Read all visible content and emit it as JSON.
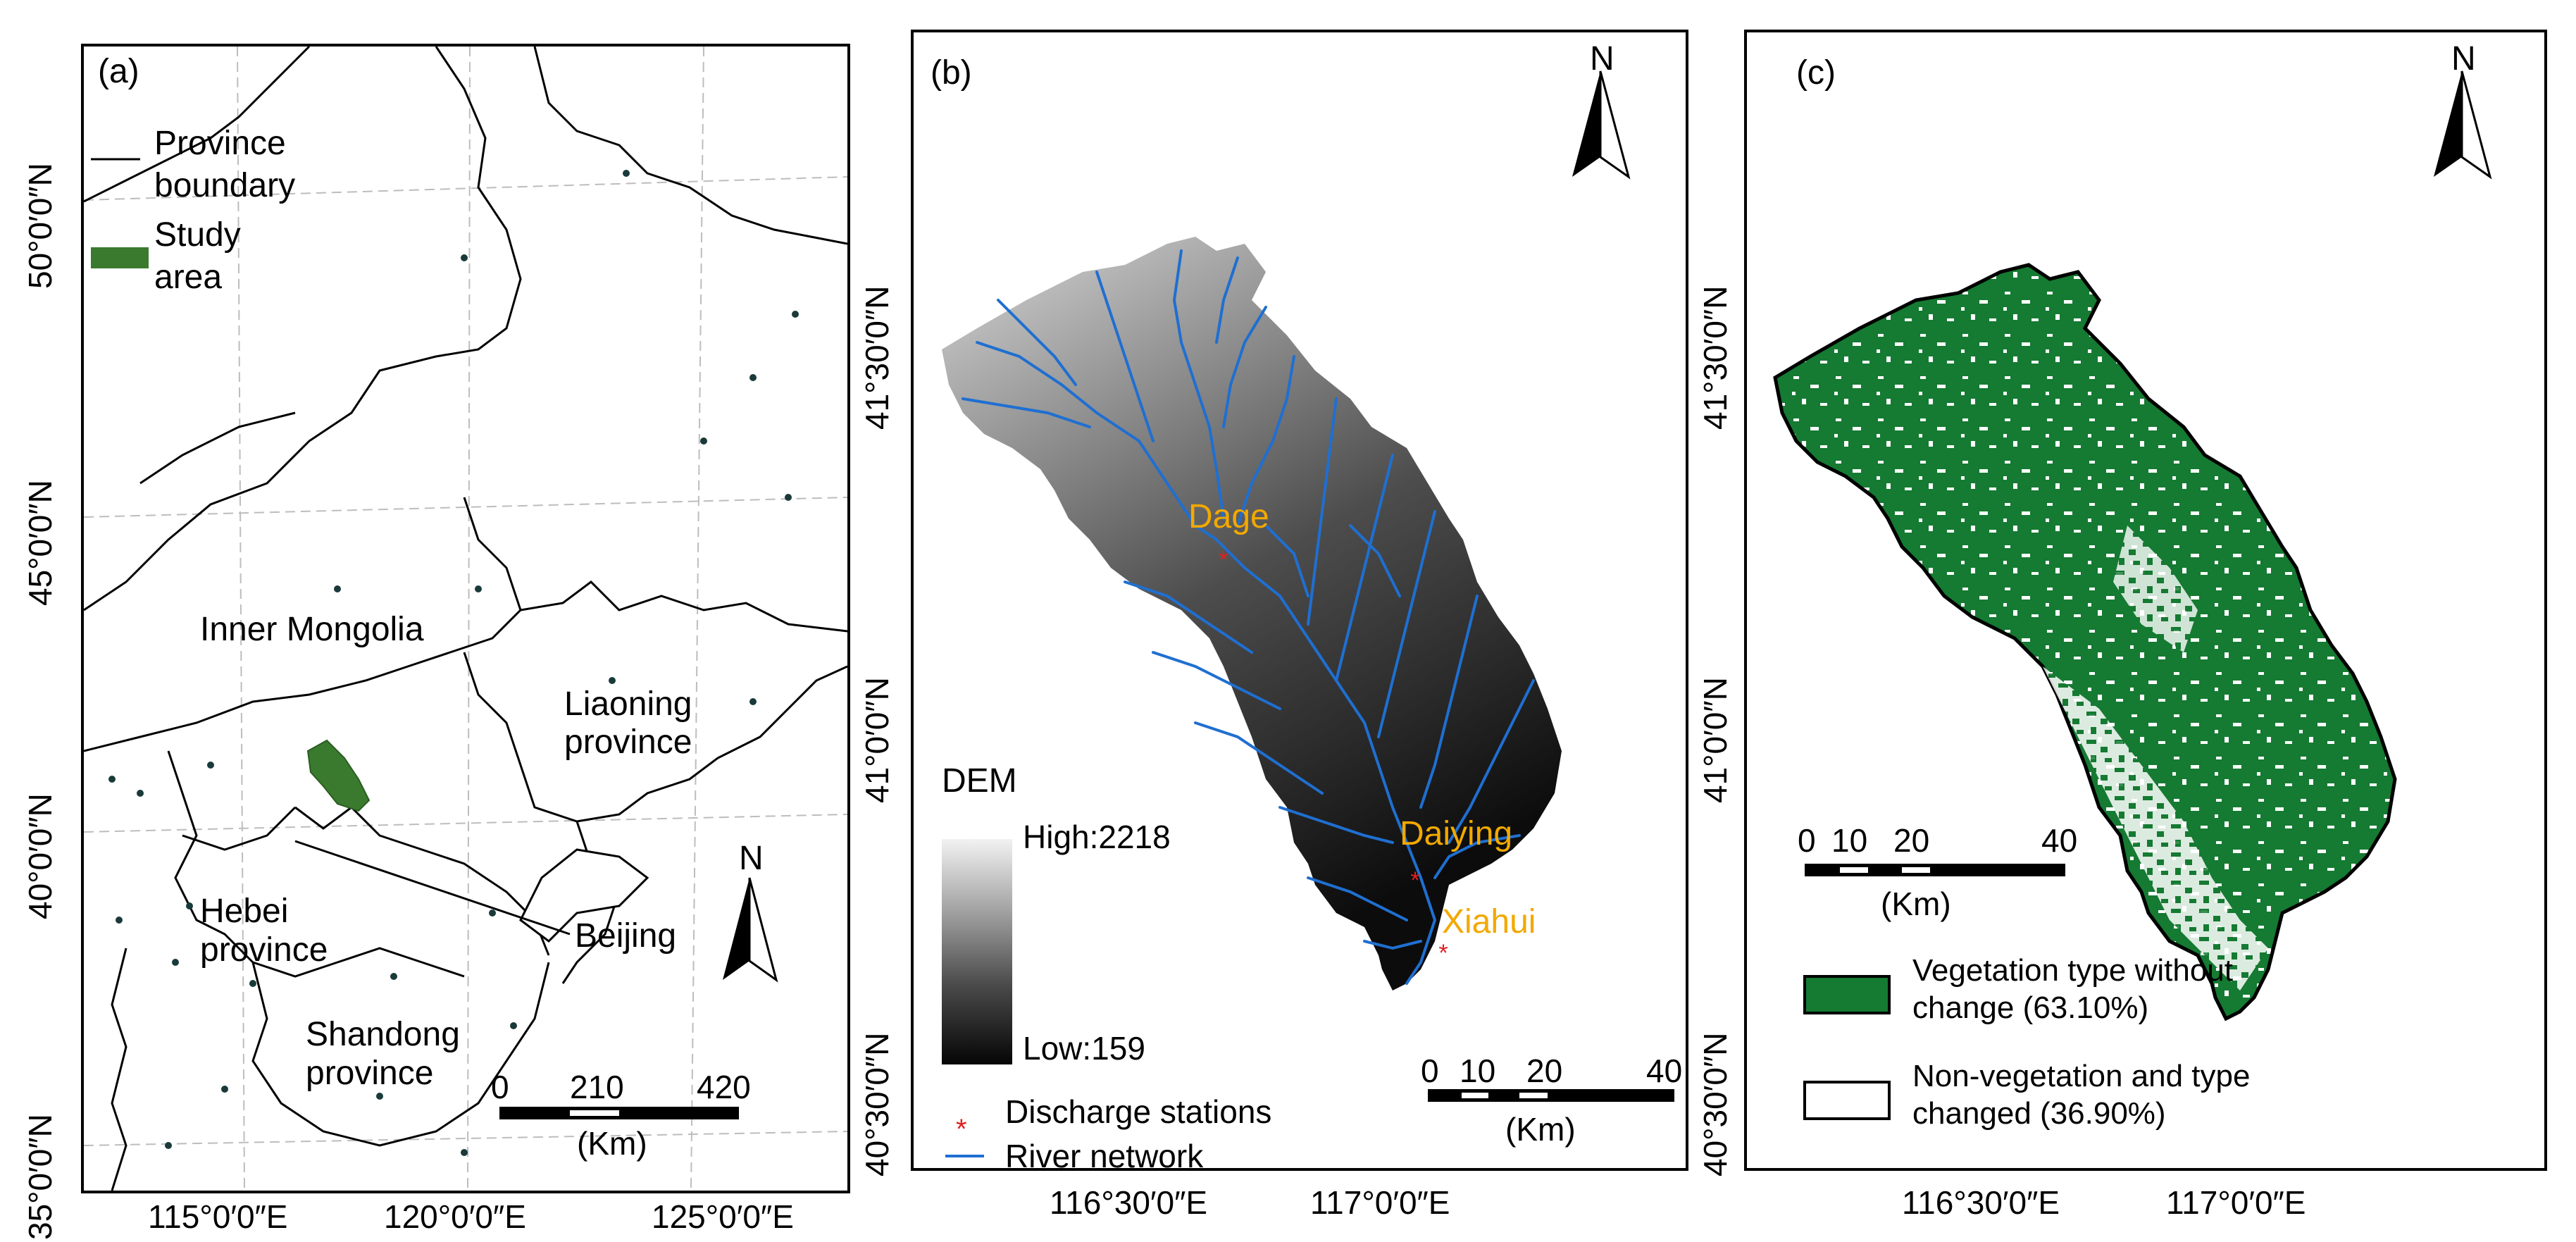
{
  "panel_a": {
    "label": "(a)",
    "legend_province": "Province boundary",
    "legend_province_l1": "Province",
    "legend_province_l2": "boundary",
    "legend_study_l1": "Study",
    "legend_study_l2": "area",
    "region_inner_mongolia": "Inner Mongolia",
    "region_liaoning_l1": "Liaoning",
    "region_liaoning_l2": "province",
    "region_hebei_l1": "Hebei",
    "region_hebei_l2": "province",
    "region_shandong_l1": "Shandong",
    "region_shandong_l2": "province",
    "city_beijing": "Beijing",
    "north": "N",
    "scale_ticks": [
      "0",
      "210",
      "420"
    ],
    "scale_unit": "(Km)",
    "lat_labels": [
      "50°0′0″N",
      "45°0′0″N",
      "40°0′0″N",
      "35°0′0″N"
    ],
    "lon_labels": [
      "115°0′0″E",
      "120°0′0″E",
      "125°0′0″E"
    ],
    "colors": {
      "study_area": "#3a7a2e"
    }
  },
  "panel_b": {
    "label": "(b)",
    "north": "N",
    "dem_title": "DEM",
    "dem_high": "High:2218",
    "dem_low": "Low:159",
    "stations": [
      "Dage",
      "Daiying",
      "Xiahui"
    ],
    "legend_stations": "Discharge stations",
    "legend_river": "River network",
    "scale_ticks": [
      "0",
      "10",
      "20",
      "40"
    ],
    "scale_unit": "(Km)",
    "lat_labels": [
      "41°30′0″N",
      "41°0′0″N",
      "40°30′0″N"
    ],
    "lon_labels": [
      "116°30′0″E",
      "117°0′0″E"
    ],
    "colors": {
      "river": "#1f6fd1",
      "station": "#e02020",
      "station_label": "#f2a900"
    }
  },
  "panel_c": {
    "label": "(c)",
    "north": "N",
    "scale_ticks": [
      "0",
      "10",
      "20",
      "40"
    ],
    "scale_unit": "(Km)",
    "legend_veg_l1": "Vegetation type without",
    "legend_veg_l2": "change (63.10%)",
    "legend_nonveg_l1": "Non-vegetation and type",
    "legend_nonveg_l2": "changed (36.90%)",
    "lat_labels": [
      "41°30′0″N",
      "41°0′0″N",
      "40°30′0″N"
    ],
    "lon_labels": [
      "116°30′0″E",
      "117°0′0″E"
    ],
    "colors": {
      "vegetation": "#157a32",
      "non_vegetation": "#ffffff"
    }
  }
}
